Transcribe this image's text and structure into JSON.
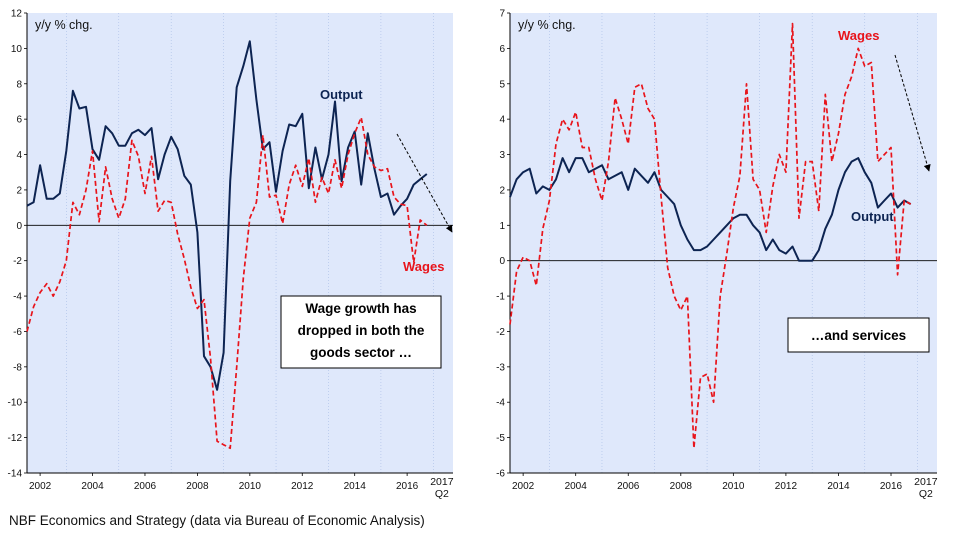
{
  "footnote": "NBF Economics and Strategy (data via Bureau of Economic Analysis)",
  "colors": {
    "plot_bg": "#dfe8fb",
    "output": "#0d2452",
    "wages": "#e8141b",
    "axis": "#000000",
    "grid": "#a9bde6"
  },
  "chart_data": [
    {
      "type": "line",
      "ylabel": "y/y % chg.",
      "ylim": [
        -14,
        12
      ],
      "yticks": [
        -14,
        -12,
        -10,
        -8,
        -6,
        -4,
        -2,
        0,
        2,
        4,
        6,
        8,
        10,
        12
      ],
      "xlim": [
        2001.5,
        2017.75
      ],
      "xtick_labels": [
        "2002",
        "2004",
        "2006",
        "2008",
        "2010",
        "2012",
        "2014",
        "2016"
      ],
      "xtick_values": [
        2002,
        2004,
        2006,
        2008,
        2010,
        2012,
        2014,
        2016
      ],
      "x_end_label": [
        "2017",
        "Q2"
      ],
      "x_end_value": 2017.25,
      "annotation": [
        "Wage growth has",
        "dropped in both the",
        "goods sector …"
      ],
      "series": [
        {
          "name": "Output",
          "style": "solid",
          "x_start": 2001.5,
          "x_step": 0.25,
          "values": [
            1.1,
            1.3,
            3.4,
            1.5,
            1.5,
            1.8,
            4.2,
            7.6,
            6.6,
            6.7,
            4.3,
            3.7,
            5.6,
            5.2,
            4.5,
            4.5,
            5.2,
            5.4,
            5.1,
            5.5,
            2.6,
            4.0,
            5.0,
            4.3,
            2.8,
            2.3,
            -0.4,
            -7.4,
            -8.0,
            -9.3,
            -7.2,
            2.5,
            7.8,
            9.0,
            10.4,
            7.1,
            4.3,
            4.7,
            1.9,
            4.2,
            5.7,
            5.6,
            6.3,
            2.1,
            4.4,
            2.6,
            4.0,
            7.0,
            2.5,
            4.4,
            5.3,
            2.3,
            5.2,
            3.2,
            1.6,
            1.8,
            0.6,
            1.1,
            1.5,
            2.3,
            2.6,
            2.9
          ]
        },
        {
          "name": "Wages",
          "style": "dashed",
          "x_start": 2001.5,
          "x_step": 0.25,
          "values": [
            -6.0,
            -4.6,
            -3.8,
            -3.3,
            -4.0,
            -3.2,
            -2.0,
            1.3,
            0.6,
            2.0,
            4.2,
            0.2,
            3.3,
            1.5,
            0.4,
            1.5,
            4.8,
            3.9,
            1.8,
            3.9,
            0.8,
            1.4,
            1.3,
            -0.5,
            -1.9,
            -3.5,
            -4.7,
            -4.2,
            -7.5,
            -12.2,
            -12.4,
            -12.6,
            -8.0,
            -3.0,
            0.4,
            1.3,
            5.1,
            1.6,
            1.7,
            0.1,
            2.3,
            3.4,
            2.2,
            3.8,
            1.3,
            2.7,
            1.8,
            3.7,
            2.1,
            4.0,
            5.2,
            6.1,
            4.0,
            3.3,
            3.1,
            3.2,
            1.6,
            1.2,
            1.1,
            -2.1,
            0.3,
            0.0
          ]
        }
      ],
      "series_labels": [
        "Output",
        "Wages"
      ]
    },
    {
      "type": "line",
      "ylabel": "y/y % chg.",
      "ylim": [
        -6,
        7
      ],
      "yticks": [
        -6,
        -5,
        -4,
        -3,
        -2,
        -1,
        0,
        1,
        2,
        3,
        4,
        5,
        6,
        7
      ],
      "xlim": [
        2001.5,
        2017.75
      ],
      "xtick_labels": [
        "2002",
        "2004",
        "2006",
        "2008",
        "2010",
        "2012",
        "2014",
        "2016"
      ],
      "xtick_values": [
        2002,
        2004,
        2006,
        2008,
        2010,
        2012,
        2014,
        2016
      ],
      "x_end_label": [
        "2017",
        "Q2"
      ],
      "x_end_value": 2017.25,
      "annotation": [
        "…and services"
      ],
      "series": [
        {
          "name": "Output",
          "style": "solid",
          "x_start": 2001.5,
          "x_step": 0.25,
          "values": [
            1.8,
            2.3,
            2.5,
            2.6,
            1.9,
            2.1,
            2.0,
            2.3,
            2.9,
            2.5,
            2.9,
            2.9,
            2.5,
            2.6,
            2.7,
            2.3,
            2.4,
            2.5,
            2.0,
            2.6,
            2.4,
            2.2,
            2.5,
            2.0,
            1.8,
            1.6,
            1.0,
            0.6,
            0.3,
            0.3,
            0.4,
            0.6,
            0.8,
            1.0,
            1.2,
            1.3,
            1.3,
            1.0,
            0.8,
            0.3,
            0.6,
            0.3,
            0.2,
            0.4,
            0.0,
            0.0,
            0.0,
            0.3,
            0.9,
            1.3,
            2.0,
            2.5,
            2.8,
            2.9,
            2.5,
            2.2,
            1.5,
            1.7,
            1.9,
            1.5,
            1.7,
            1.6
          ]
        },
        {
          "name": "Wages",
          "style": "dashed",
          "x_start": 2001.5,
          "x_step": 0.25,
          "values": [
            -1.8,
            -0.3,
            0.1,
            0.0,
            -0.7,
            0.9,
            1.7,
            3.3,
            4.0,
            3.7,
            4.2,
            3.2,
            3.2,
            2.3,
            1.7,
            2.8,
            4.6,
            4.0,
            3.3,
            4.9,
            5.0,
            4.3,
            4.0,
            1.8,
            -0.2,
            -1.0,
            -1.4,
            -1.0,
            -5.3,
            -3.3,
            -3.2,
            -4.0,
            -1.0,
            0.2,
            1.5,
            2.4,
            5.0,
            2.3,
            2.0,
            0.8,
            2.1,
            3.0,
            2.5,
            6.7,
            1.2,
            2.8,
            2.8,
            1.4,
            4.7,
            2.8,
            3.6,
            4.7,
            5.2,
            6.0,
            5.5,
            5.6,
            2.8,
            3.0,
            3.2,
            -0.4,
            1.7,
            1.6
          ]
        }
      ],
      "series_labels": [
        "Output",
        "Wages"
      ]
    }
  ]
}
